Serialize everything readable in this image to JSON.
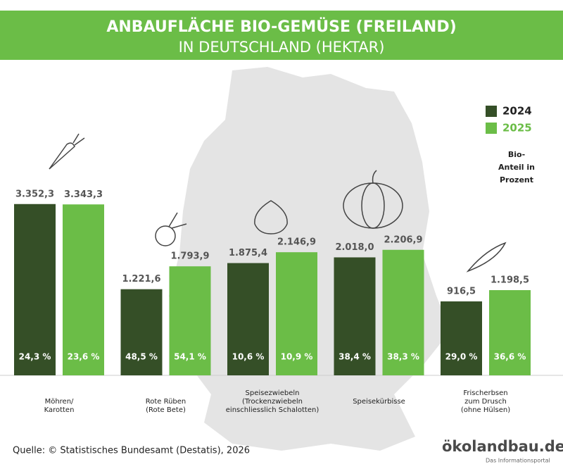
{
  "chart_data": {
    "type": "bar",
    "title": "ANBAUFLÄCHE BIO-GEMÜSE (FREILAND)",
    "subtitle": "IN DEUTSCHLAND (HEKTAR)",
    "categories": [
      [
        "Möhren/",
        "Karotten"
      ],
      [
        "Rote Rüben",
        "(Rote Bete)"
      ],
      [
        "Speisezwiebeln",
        "(Trockenzwiebeln",
        "einschliesslich Schalotten)"
      ],
      [
        "Speisekürbisse"
      ],
      [
        "Frischerbsen",
        "zum Drusch",
        "(ohne Hülsen)"
      ]
    ],
    "series": [
      {
        "name": "2024",
        "color": "#354f27",
        "values": [
          3352.3,
          1221.6,
          1875.4,
          2018.0,
          916.5
        ],
        "value_labels": [
          "3.352,3",
          "1.221,6",
          "1.875,4",
          "2.018,0",
          "916,5"
        ],
        "shares": [
          24.3,
          48.5,
          10.6,
          38.4,
          29.0
        ],
        "share_labels": [
          "24,3 %",
          "48,5 %",
          "10,6 %",
          "38,4 %",
          "29,0 %"
        ]
      },
      {
        "name": "2025",
        "color": "#6bbd47",
        "values": [
          3343.3,
          1793.9,
          2146.9,
          2206.9,
          1198.5
        ],
        "value_labels": [
          "3.343,3",
          "1.793,9",
          "2.146,9",
          "2.206,9",
          "1.198,5"
        ],
        "shares": [
          23.6,
          54.1,
          10.9,
          38.3,
          36.6
        ],
        "share_labels": [
          "23,6 %",
          "54,1 %",
          "10,9 %",
          "38,3 %",
          "36,6 %"
        ]
      }
    ],
    "share_note": [
      "Bio-",
      "Anteil in",
      "Prozent"
    ],
    "ylim": [
      0,
      4000
    ],
    "legend": "top-right",
    "source": "Quelle: © Statistisches Bundesamt (Destatis), 2026",
    "logo": "ökolandbau.de",
    "logo_tagline": "Das Informationsportal"
  }
}
